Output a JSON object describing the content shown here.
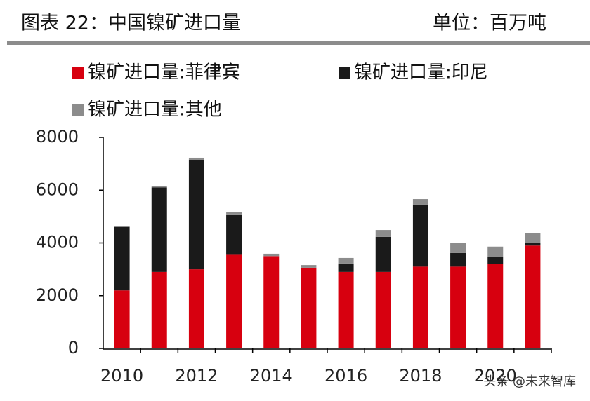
{
  "header": {
    "title": "图表 22：中国镍矿进口量",
    "unit": "单位：百万吨"
  },
  "chart_data": {
    "type": "stacked_bar",
    "categories": [
      "2010",
      null,
      "2012",
      null,
      "2014",
      null,
      "2016",
      null,
      "2018",
      null,
      "2020",
      null
    ],
    "series": [
      {
        "name": "镍矿进口量:菲律宾",
        "color": "#d7000f",
        "values": [
          2200,
          2900,
          3000,
          3550,
          3500,
          3060,
          2900,
          2900,
          3100,
          3100,
          3200,
          3900
        ]
      },
      {
        "name": "镍矿进口量:印尼",
        "color": "#1a1a1a",
        "values": [
          2400,
          3200,
          4150,
          1530,
          0,
          0,
          320,
          1330,
          2350,
          520,
          260,
          90
        ]
      },
      {
        "name": "镍矿进口量:其他",
        "color": "#8c8c8c",
        "values": [
          50,
          50,
          80,
          80,
          90,
          100,
          210,
          260,
          210,
          370,
          400,
          370
        ]
      }
    ],
    "ylim": [
      0,
      8000
    ],
    "yticks": [
      0,
      2000,
      4000,
      6000,
      8000
    ]
  },
  "watermark": "头条 @未来智库"
}
